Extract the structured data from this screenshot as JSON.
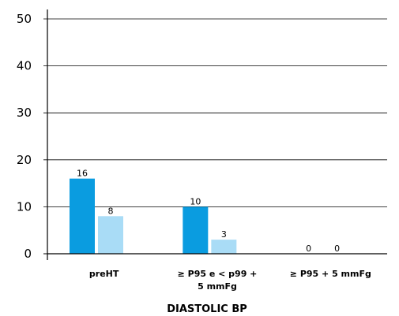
{
  "chart_data": {
    "type": "bar",
    "title": "",
    "xlabel": "DIASTOLIC BP",
    "ylabel": "",
    "ylim": [
      0,
      50
    ],
    "yticks": [
      0,
      10,
      20,
      30,
      40,
      50
    ],
    "grid": true,
    "legend": "none",
    "categories": [
      [
        "preHT"
      ],
      [
        "≥ P95 e < p99 +",
        "5 mmFg"
      ],
      [
        "≥ P95 + 5 mmFg"
      ]
    ],
    "series": [
      {
        "values": [
          16,
          10,
          0
        ],
        "color": "#0a9ce0"
      },
      {
        "values": [
          8,
          3,
          0
        ],
        "color": "#a9dcf6"
      }
    ],
    "data_labels": [
      [
        "16",
        "10",
        "0"
      ],
      [
        "8",
        "3",
        "0"
      ]
    ]
  }
}
